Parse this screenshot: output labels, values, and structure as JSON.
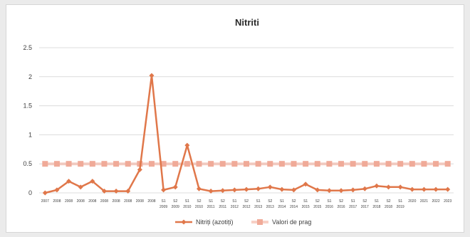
{
  "chart_data": {
    "type": "line",
    "title": "Nitriti",
    "ylim": [
      0,
      2.5
    ],
    "yticks": [
      "0",
      "0.5",
      "1",
      "1.5",
      "2",
      "2.5"
    ],
    "grid": true,
    "legend_position": "bottom",
    "categories": [
      "2007",
      "2008",
      "2008",
      "2008",
      "2008",
      "2008",
      "2008",
      "2008",
      "2008",
      "2008",
      "S1",
      "S2",
      "S1",
      "S2",
      "S1",
      "S2",
      "S1",
      "S2",
      "S1",
      "S2",
      "S1",
      "S2",
      "S1",
      "S2",
      "S1",
      "S2",
      "S1",
      "S2",
      "S1",
      "S2",
      "S1",
      "2020",
      "2021",
      "2022",
      "2023"
    ],
    "x_tick_rows": [
      [
        "2007",
        "2008",
        "2008",
        "2008",
        "2008",
        "2008",
        "2008",
        "2008",
        "2008",
        "2008",
        "S1",
        "S2",
        "S1",
        "S2",
        "S1",
        "S2",
        "S1",
        "S2",
        "S1",
        "S2",
        "S1",
        "S2",
        "S1",
        "S2",
        "S1",
        "S2",
        "S1",
        "S2",
        "S1",
        "S2",
        "S1",
        "2020",
        "2021",
        "2022",
        "2023"
      ],
      [
        "",
        "",
        "",
        "",
        "",
        "",
        "",
        "",
        "",
        "",
        "2009",
        "2009",
        "2010",
        "2010",
        "2011",
        "2011",
        "2012",
        "2012",
        "2013",
        "2013",
        "2014",
        "2014",
        "2015",
        "2015",
        "2016",
        "2016",
        "2017",
        "2017",
        "2018",
        "2018",
        "2019",
        "",
        "",
        "",
        ""
      ]
    ],
    "series": [
      {
        "name": "Nitriți (azotiți)",
        "color": "#e0774a",
        "marker": "diamond",
        "values": [
          0.0,
          0.05,
          0.2,
          0.1,
          0.2,
          0.03,
          0.03,
          0.03,
          0.4,
          2.02,
          0.05,
          0.1,
          0.82,
          0.07,
          0.03,
          0.04,
          0.05,
          0.06,
          0.07,
          0.1,
          0.06,
          0.05,
          0.15,
          0.05,
          0.04,
          0.04,
          0.05,
          0.07,
          0.12,
          0.1,
          0.1,
          0.06,
          0.06,
          0.06,
          0.06
        ]
      },
      {
        "name": "Valori de prag",
        "color": "#f0aa98",
        "marker": "square",
        "values": [
          0.5,
          0.5,
          0.5,
          0.5,
          0.5,
          0.5,
          0.5,
          0.5,
          0.5,
          0.5,
          0.5,
          0.5,
          0.5,
          0.5,
          0.5,
          0.5,
          0.5,
          0.5,
          0.5,
          0.5,
          0.5,
          0.5,
          0.5,
          0.5,
          0.5,
          0.5,
          0.5,
          0.5,
          0.5,
          0.5,
          0.5,
          0.5,
          0.5,
          0.5,
          0.5
        ]
      }
    ]
  }
}
